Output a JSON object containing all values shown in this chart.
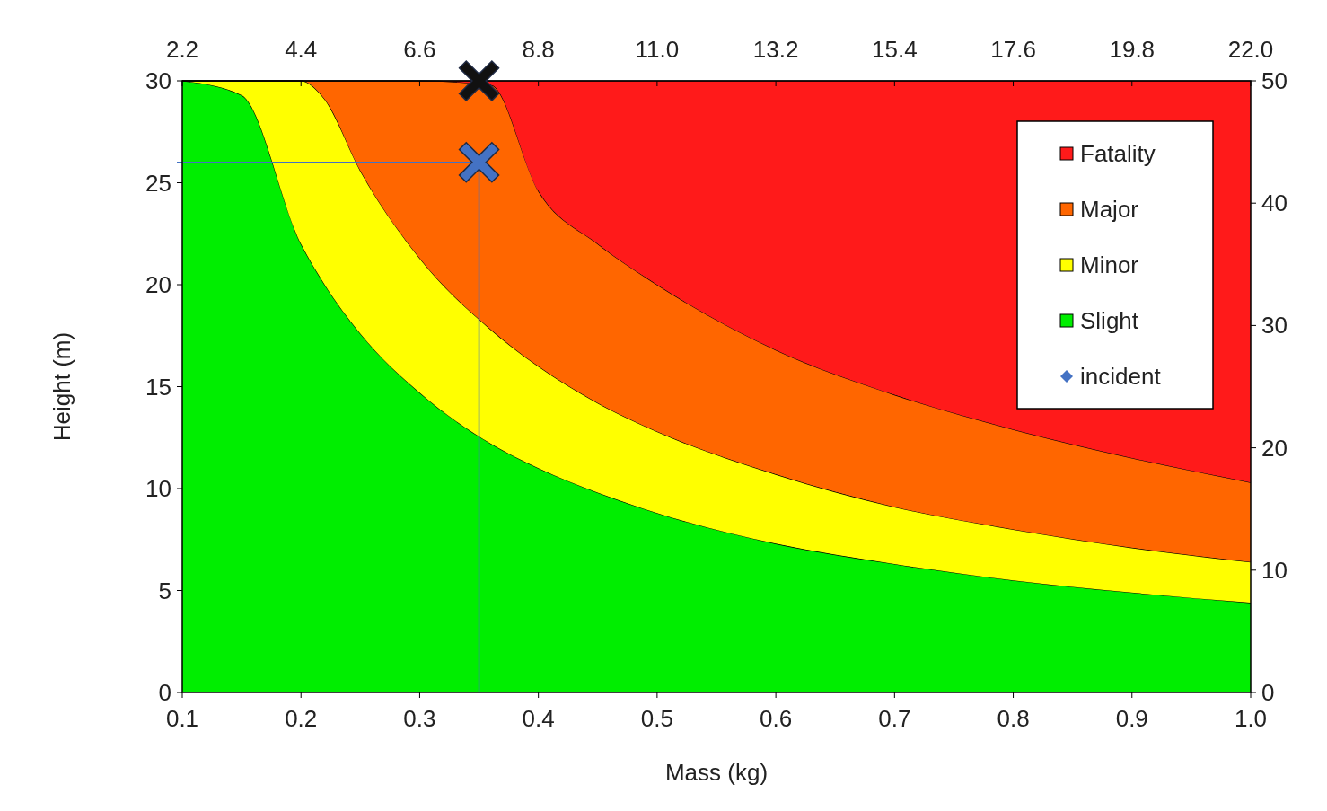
{
  "chart_data": {
    "type": "area",
    "stacked": true,
    "xlabel": "Mass (kg)",
    "ylabel": "Height (m)",
    "x": [
      0.1,
      0.15,
      0.2,
      0.22,
      0.25,
      0.3,
      0.36,
      0.4,
      0.45,
      0.5,
      0.6,
      0.7,
      0.8,
      0.9,
      1.0
    ],
    "series": [
      {
        "name": "Slight",
        "color": "#00ee00",
        "values": [
          30,
          29.3,
          22,
          20,
          17.6,
          14.7,
          12.2,
          11,
          9.8,
          8.8,
          7.3,
          6.3,
          5.5,
          4.9,
          4.4
        ]
      },
      {
        "name": "Minor",
        "color": "#ffff00",
        "values": [
          0,
          0.7,
          8,
          9.1,
          8,
          6.6,
          5.6,
          5,
          4.4,
          4,
          3.4,
          2.8,
          2.5,
          2.2,
          2
        ]
      },
      {
        "name": "Major",
        "color": "#ff6600",
        "values": [
          0,
          0,
          0,
          0.9,
          4.4,
          8.7,
          12,
          8.6,
          7.8,
          7.2,
          6.1,
          5.5,
          4.9,
          4.4,
          3.9
        ]
      },
      {
        "name": "Fatality",
        "color": "#ff1a1a",
        "values": [
          0,
          0,
          0,
          0,
          0,
          0,
          0.2,
          5.4,
          8,
          10,
          13.2,
          15.4,
          17.1,
          18.5,
          19.7
        ]
      },
      {
        "type": "scatter",
        "marker": "cross",
        "color": "#111111",
        "x": [
          0.35
        ],
        "values": [
          30
        ]
      },
      {
        "type": "scatter",
        "name": "incident",
        "marker": "cross",
        "color": "#4472c4",
        "x": [
          0.35
        ],
        "values": [
          26
        ]
      }
    ],
    "xlim": [
      0.1,
      1.0
    ],
    "xticks": [
      {
        "value": 0.1,
        "label": "0.1"
      },
      0.2,
      0.3,
      0.4,
      0.5,
      0.6,
      0.7,
      0.8,
      0.9,
      {
        "value": 1.0,
        "label": "1.0"
      }
    ],
    "x2lim": [
      2.2,
      22.0
    ],
    "x2ticks": [
      2.2,
      4.4,
      6.6,
      8.8,
      {
        "value": 11,
        "label": "11.0"
      },
      13.2,
      15.4,
      17.6,
      19.8,
      {
        "value": 22,
        "label": "22.0"
      }
    ],
    "ylim": [
      0,
      30
    ],
    "yticks": [
      0,
      5,
      10,
      15,
      20,
      25,
      30
    ],
    "y2lim": [
      0,
      50
    ],
    "y2ticks": [
      0,
      10,
      20,
      30,
      40,
      50
    ],
    "ref_lines": [
      {
        "axis": "y",
        "value": 26,
        "color": "#4472c4"
      },
      {
        "axis": "x",
        "value": 0.35,
        "color": "#4472c4"
      }
    ],
    "legend": "top right"
  }
}
